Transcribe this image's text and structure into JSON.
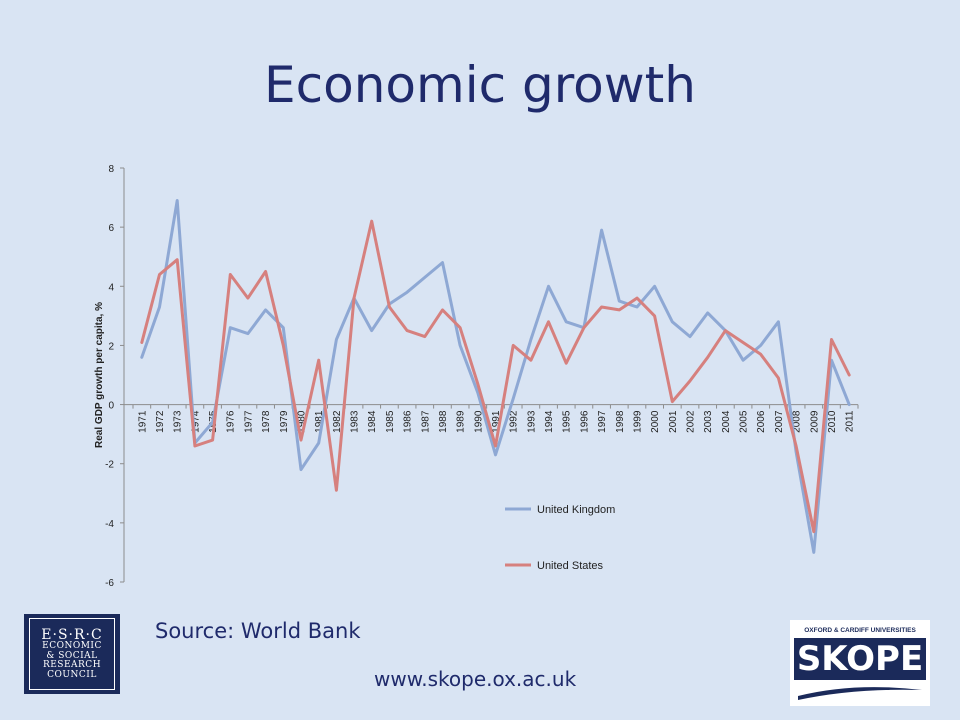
{
  "slide": {
    "title": "Economic growth",
    "source": "Source: World Bank",
    "url": "www.skope.ox.ac.uk"
  },
  "logos": {
    "esrc_lines": [
      "E·S·R·C",
      "ECONOMIC",
      "& SOCIAL",
      "RESEARCH",
      "COUNCIL"
    ],
    "skope_top": "OXFORD & CARDIFF UNIVERSITIES",
    "skope_word": "SKOPE"
  },
  "colors": {
    "background": "#d9e4f3",
    "title": "#1f2a6b",
    "uk": "#8ea8d4",
    "us": "#d6807e"
  },
  "chart_data": {
    "type": "line",
    "title": "",
    "xlabel": "",
    "ylabel": "Real GDP growth per capita, %",
    "ylim": [
      -6,
      8
    ],
    "yticks": [
      -6,
      -4,
      -2,
      0,
      2,
      4,
      6,
      8
    ],
    "grid": false,
    "legend_position": "bottom-right",
    "x": [
      "1971",
      "1972",
      "1973",
      "1974",
      "1975",
      "1976",
      "1977",
      "1978",
      "1979",
      "1980",
      "1981",
      "1982",
      "1983",
      "1984",
      "1985",
      "1986",
      "1987",
      "1988",
      "1989",
      "1990",
      "1991",
      "1992",
      "1993",
      "1994",
      "1995",
      "1996",
      "1997",
      "1998",
      "1999",
      "2000",
      "2001",
      "2002",
      "2003",
      "2004",
      "2005",
      "2006",
      "2007",
      "2008",
      "2009",
      "2010",
      "2011"
    ],
    "series": [
      {
        "name": "United Kingdom",
        "color": "#8ea8d4",
        "values": [
          1.6,
          3.3,
          6.9,
          -1.3,
          -0.6,
          2.6,
          2.4,
          3.2,
          2.6,
          -2.2,
          -1.3,
          2.2,
          3.6,
          2.5,
          3.4,
          3.8,
          4.3,
          4.8,
          2.0,
          0.4,
          -1.7,
          0.2,
          2.2,
          4.0,
          2.8,
          2.6,
          5.9,
          3.5,
          3.3,
          4.0,
          2.8,
          2.3,
          3.1,
          2.5,
          1.5,
          2.0,
          2.8,
          -1.6,
          -5.0,
          1.5,
          0.0
        ]
      },
      {
        "name": "United States",
        "color": "#d6807e",
        "values": [
          2.1,
          4.4,
          4.9,
          -1.4,
          -1.2,
          4.4,
          3.6,
          4.5,
          2.0,
          -1.2,
          1.5,
          -2.9,
          3.6,
          6.2,
          3.3,
          2.5,
          2.3,
          3.2,
          2.6,
          0.7,
          -1.4,
          2.0,
          1.5,
          2.8,
          1.4,
          2.6,
          3.3,
          3.2,
          3.6,
          3.0,
          0.1,
          0.8,
          1.6,
          2.5,
          2.1,
          1.7,
          0.9,
          -1.4,
          -4.3,
          2.2,
          1.0
        ]
      }
    ]
  }
}
